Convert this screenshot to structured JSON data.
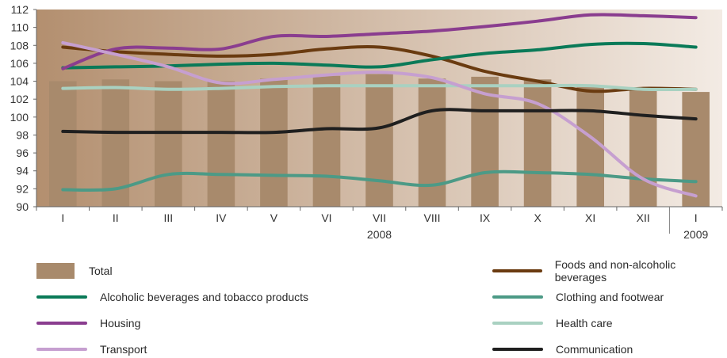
{
  "chart_data": {
    "type": "bar+line",
    "categories": [
      "I",
      "II",
      "III",
      "IV",
      "V",
      "VI",
      "VII",
      "VIII",
      "IX",
      "X",
      "XI",
      "XII",
      "I"
    ],
    "group_labels": [
      {
        "label": "2008",
        "under_index": 6
      },
      {
        "label": "2009",
        "under_index": 12
      }
    ],
    "ylim": [
      90,
      112
    ],
    "yticks": [
      90,
      92,
      94,
      96,
      98,
      100,
      102,
      104,
      106,
      108,
      110,
      112
    ],
    "grid": false,
    "background_gradient": [
      "#b38f6f",
      "#f3ebe4"
    ],
    "bar_color": "#a88a6c",
    "bar_series": {
      "name": "Total",
      "values": [
        104.0,
        104.2,
        104.0,
        104.0,
        104.3,
        104.6,
        104.8,
        104.3,
        104.5,
        104.2,
        103.5,
        103.3,
        102.8
      ]
    },
    "series": [
      {
        "name": "Foods and non-alcoholic beverages",
        "color": "#6a3b10",
        "values": [
          107.8,
          107.3,
          107.0,
          106.8,
          107.0,
          107.6,
          107.8,
          106.8,
          105.1,
          104.0,
          102.9,
          103.2,
          103.1
        ]
      },
      {
        "name": "Alcoholic beverages and tobacco products",
        "color": "#0a7a58",
        "values": [
          105.5,
          105.6,
          105.7,
          105.9,
          106.0,
          105.8,
          105.6,
          106.4,
          107.1,
          107.5,
          108.1,
          108.2,
          107.8
        ]
      },
      {
        "name": "Clothing and footwear",
        "color": "#4c9a86",
        "values": [
          91.9,
          92.0,
          93.6,
          93.6,
          93.5,
          93.4,
          92.9,
          92.4,
          93.8,
          93.8,
          93.6,
          93.1,
          92.8
        ]
      },
      {
        "name": "Housing",
        "color": "#8a3d8f",
        "values": [
          105.4,
          107.6,
          107.7,
          107.6,
          109.0,
          109.0,
          109.3,
          109.6,
          110.1,
          110.7,
          111.4,
          111.3,
          111.1
        ]
      },
      {
        "name": "Health care",
        "color": "#a9d1c1",
        "values": [
          103.2,
          103.3,
          103.1,
          103.2,
          103.4,
          103.5,
          103.5,
          103.5,
          103.5,
          103.5,
          103.5,
          103.1,
          103.1
        ]
      },
      {
        "name": "Transport",
        "color": "#c69fd0",
        "values": [
          108.3,
          107.0,
          105.6,
          103.8,
          104.2,
          104.7,
          105.0,
          104.4,
          102.6,
          101.5,
          97.8,
          93.1,
          91.2
        ]
      },
      {
        "name": "Communication",
        "color": "#1f1f1f",
        "values": [
          98.4,
          98.3,
          98.3,
          98.3,
          98.3,
          98.7,
          98.8,
          100.7,
          100.7,
          100.7,
          100.7,
          100.2,
          99.8
        ]
      }
    ]
  },
  "legend": {
    "total": "Total",
    "foods": "Foods and non-alcoholic beverages",
    "alcohol": "Alcoholic beverages and tobacco products",
    "clothing": "Clothing and footwear",
    "housing": "Housing",
    "health": "Health care",
    "transport": "Transport",
    "communication": "Communication"
  }
}
